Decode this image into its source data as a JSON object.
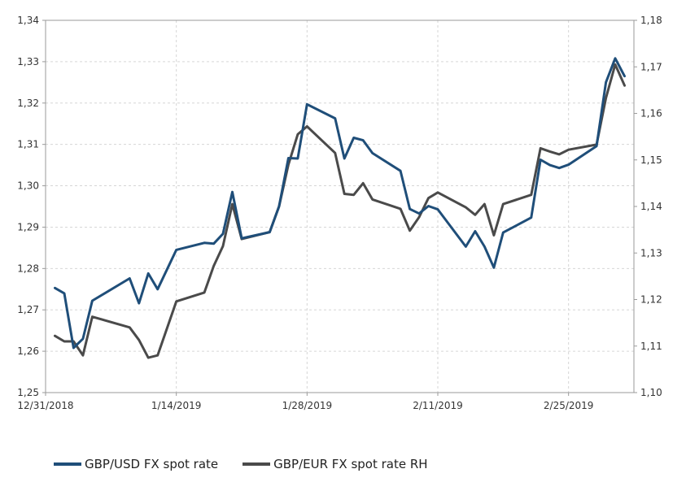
{
  "chart_data": {
    "type": "line",
    "x_ticks": [
      "12/31/2018",
      "1/14/2019",
      "1/28/2019",
      "2/11/2019",
      "2/25/2019"
    ],
    "y_left_ticks": [
      "1,25",
      "1,26",
      "1,27",
      "1,28",
      "1,29",
      "1,30",
      "1,31",
      "1,32",
      "1,33",
      "1,34"
    ],
    "y_right_ticks": [
      "1,10",
      "1,11",
      "1,12",
      "1,13",
      "1,14",
      "1,15",
      "1,16",
      "1,17",
      "1,18"
    ],
    "ylim_left": [
      1.25,
      1.34
    ],
    "ylim_right": [
      1.1,
      1.18
    ],
    "xlim": [
      "2018-12-31",
      "2019-03-04"
    ],
    "grid": true,
    "legend_position": "bottom-left",
    "series": [
      {
        "name": "GBP/USD FX spot rate",
        "axis": "left",
        "color": "#1F4E79",
        "points": [
          [
            "2019-01-01",
            1.2753
          ],
          [
            "2019-01-02",
            1.274
          ],
          [
            "2019-01-03",
            1.2608
          ],
          [
            "2019-01-04",
            1.263
          ],
          [
            "2019-01-05",
            1.2722
          ],
          [
            "2019-01-09",
            1.2776
          ],
          [
            "2019-01-10",
            1.2716
          ],
          [
            "2019-01-11",
            1.2788
          ],
          [
            "2019-01-12",
            1.275
          ],
          [
            "2019-01-14",
            1.2845
          ],
          [
            "2019-01-17",
            1.2862
          ],
          [
            "2019-01-18",
            1.286
          ],
          [
            "2019-01-19",
            1.2884
          ],
          [
            "2019-01-20",
            1.2985
          ],
          [
            "2019-01-21",
            1.2873
          ],
          [
            "2019-01-24",
            1.2888
          ],
          [
            "2019-01-25",
            1.295
          ],
          [
            "2019-01-26",
            1.3067
          ],
          [
            "2019-01-27",
            1.3066
          ],
          [
            "2019-01-28",
            1.3197
          ],
          [
            "2019-01-31",
            1.3163
          ],
          [
            "2019-02-01",
            1.3066
          ],
          [
            "2019-02-02",
            1.3116
          ],
          [
            "2019-02-03",
            1.311
          ],
          [
            "2019-02-04",
            1.3079
          ],
          [
            "2019-02-07",
            1.3036
          ],
          [
            "2019-02-08",
            1.2944
          ],
          [
            "2019-02-09",
            1.2933
          ],
          [
            "2019-02-10",
            1.2951
          ],
          [
            "2019-02-11",
            1.2943
          ],
          [
            "2019-02-14",
            1.2853
          ],
          [
            "2019-02-15",
            1.289
          ],
          [
            "2019-02-16",
            1.2853
          ],
          [
            "2019-02-17",
            1.2802
          ],
          [
            "2019-02-18",
            1.2887
          ],
          [
            "2019-02-21",
            1.2923
          ],
          [
            "2019-02-22",
            1.3063
          ],
          [
            "2019-02-23",
            1.305
          ],
          [
            "2019-02-24",
            1.3043
          ],
          [
            "2019-02-25",
            1.3051
          ],
          [
            "2019-02-28",
            1.3096
          ],
          [
            "2019-03-01",
            1.325
          ],
          [
            "2019-03-02",
            1.3308
          ],
          [
            "2019-03-03",
            1.3265
          ]
        ]
      },
      {
        "name": "GBP/EUR FX spot rate RH",
        "axis": "right",
        "color": "#4A4A4A",
        "points": [
          [
            "2019-01-01",
            1.1122
          ],
          [
            "2019-01-02",
            1.111
          ],
          [
            "2019-01-03",
            1.111
          ],
          [
            "2019-01-04",
            1.108
          ],
          [
            "2019-01-05",
            1.1163
          ],
          [
            "2019-01-09",
            1.114
          ],
          [
            "2019-01-10",
            1.1113
          ],
          [
            "2019-01-11",
            1.1075
          ],
          [
            "2019-01-12",
            1.108
          ],
          [
            "2019-01-14",
            1.1196
          ],
          [
            "2019-01-17",
            1.1215
          ],
          [
            "2019-01-18",
            1.1272
          ],
          [
            "2019-01-19",
            1.1315
          ],
          [
            "2019-01-20",
            1.1405
          ],
          [
            "2019-01-21",
            1.133
          ],
          [
            "2019-01-24",
            1.1345
          ],
          [
            "2019-01-25",
            1.14
          ],
          [
            "2019-01-26",
            1.149
          ],
          [
            "2019-01-27",
            1.1555
          ],
          [
            "2019-01-28",
            1.1572
          ],
          [
            "2019-01-31",
            1.1515
          ],
          [
            "2019-02-01",
            1.1427
          ],
          [
            "2019-02-02",
            1.1425
          ],
          [
            "2019-02-03",
            1.145
          ],
          [
            "2019-02-04",
            1.1415
          ],
          [
            "2019-02-07",
            1.1395
          ],
          [
            "2019-02-08",
            1.1348
          ],
          [
            "2019-02-09",
            1.1377
          ],
          [
            "2019-02-10",
            1.1418
          ],
          [
            "2019-02-11",
            1.143
          ],
          [
            "2019-02-14",
            1.1398
          ],
          [
            "2019-02-15",
            1.1382
          ],
          [
            "2019-02-16",
            1.1405
          ],
          [
            "2019-02-17",
            1.1338
          ],
          [
            "2019-02-18",
            1.1405
          ],
          [
            "2019-02-21",
            1.1425
          ],
          [
            "2019-02-22",
            1.1525
          ],
          [
            "2019-02-23",
            1.1518
          ],
          [
            "2019-02-24",
            1.1512
          ],
          [
            "2019-02-25",
            1.1522
          ],
          [
            "2019-02-28",
            1.1533
          ],
          [
            "2019-03-01",
            1.1633
          ],
          [
            "2019-03-02",
            1.1705
          ],
          [
            "2019-03-03",
            1.166
          ]
        ]
      }
    ]
  }
}
